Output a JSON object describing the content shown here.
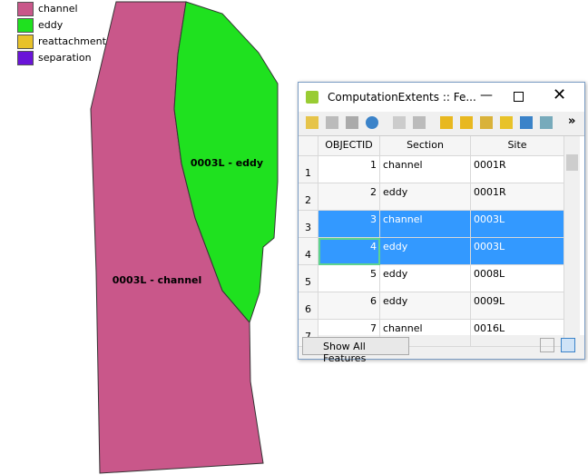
{
  "legend": [
    {
      "label": "channel",
      "color": "#c9578a"
    },
    {
      "label": "eddy",
      "color": "#1fe11f"
    },
    {
      "label": "reattachment",
      "color": "#e8c229"
    },
    {
      "label": "separation",
      "color": "#6a14d8"
    }
  ],
  "map_labels": {
    "eddy": "0003L - eddy",
    "channel": "0003L - channel"
  },
  "window": {
    "title": "ComputationExtents :: Fe...",
    "columns": [
      "OBJECTID",
      "Section",
      "Site"
    ],
    "rows": [
      {
        "header": 1,
        "cells": [
          1,
          "channel",
          "0001R"
        ],
        "selected": false
      },
      {
        "header": 2,
        "cells": [
          2,
          "eddy",
          "0001R"
        ],
        "selected": false
      },
      {
        "header": 3,
        "cells": [
          3,
          "channel",
          "0003L"
        ],
        "selected": true
      },
      {
        "header": 4,
        "cells": [
          4,
          "eddy",
          "0003L"
        ],
        "selected": true
      },
      {
        "header": 5,
        "cells": [
          5,
          "eddy",
          "0008L"
        ],
        "selected": false
      },
      {
        "header": 6,
        "cells": [
          6,
          "eddy",
          "0009L"
        ],
        "selected": false
      },
      {
        "header": 7,
        "cells": [
          7,
          "channel",
          "0016L"
        ],
        "selected": false
      }
    ],
    "footer_button": "Show All Features"
  }
}
